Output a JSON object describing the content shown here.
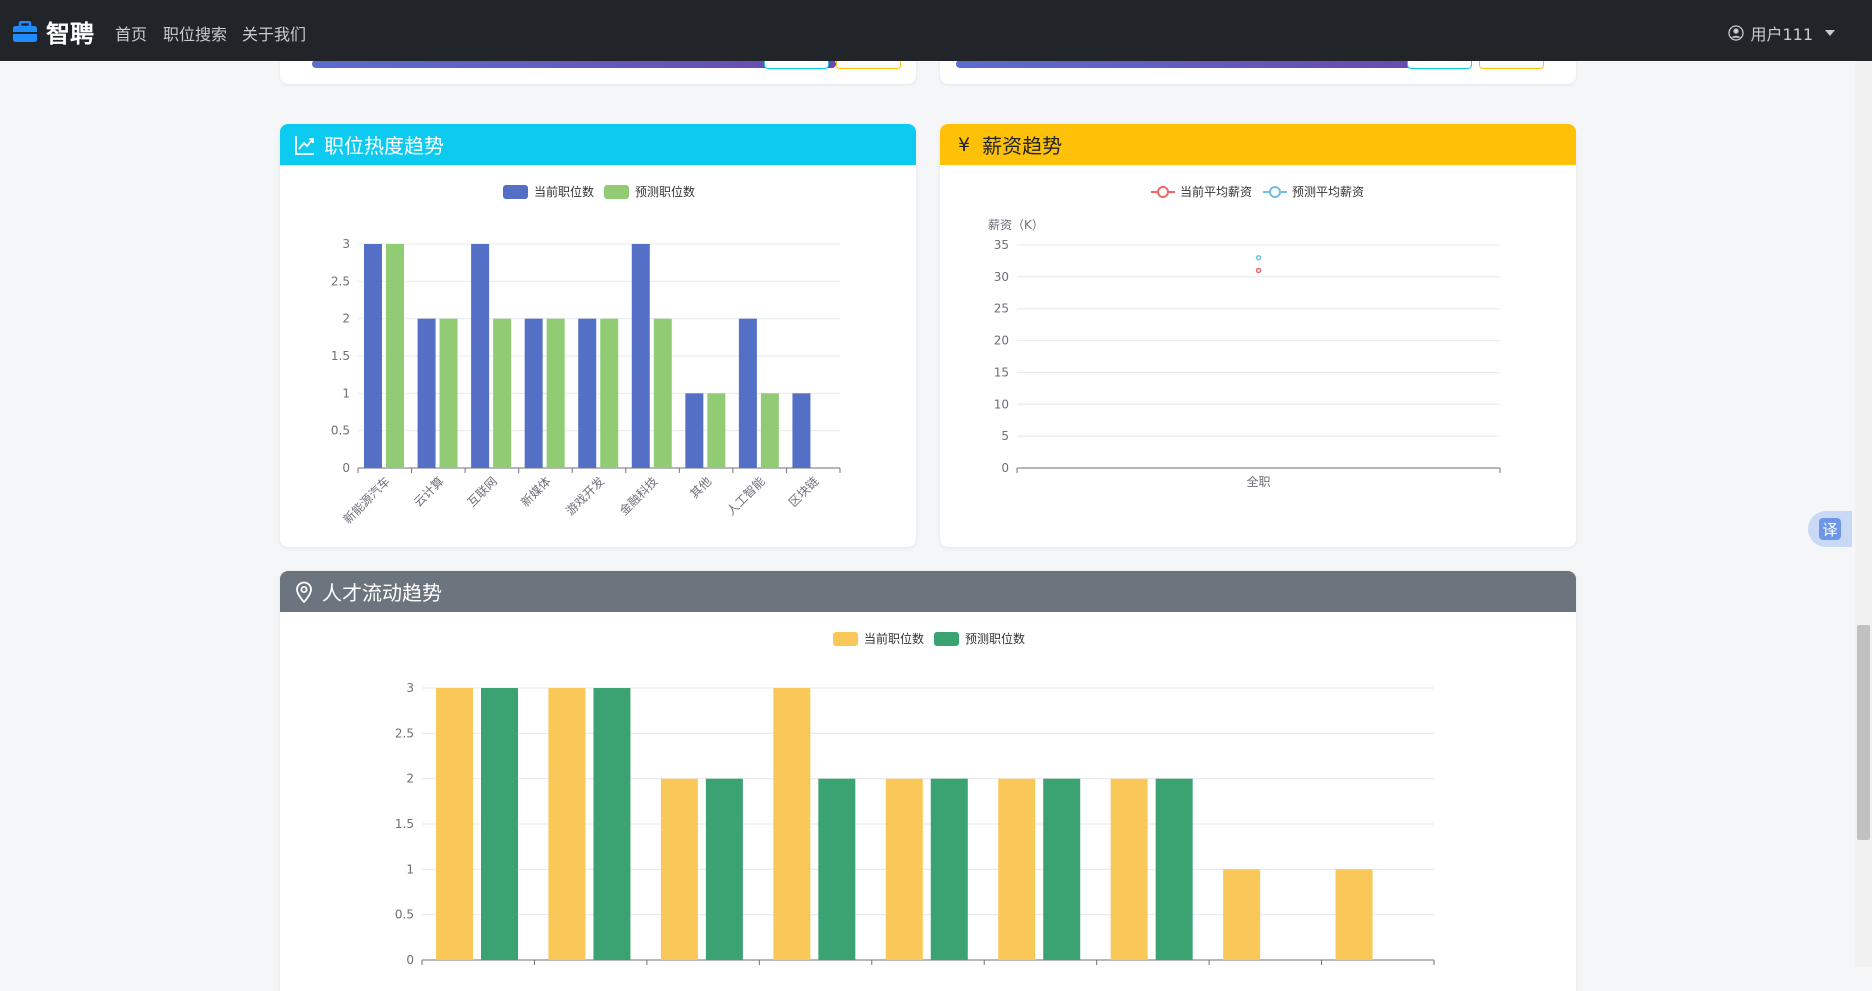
{
  "navbar": {
    "brand": "智聘",
    "links": [
      "首页",
      "职位搜索",
      "关于我们"
    ],
    "user": "用户111"
  },
  "translate_label": "译",
  "colors": {
    "navbar_bg": "#212529",
    "info": "#0dcaf0",
    "warning": "#ffc107",
    "secondary": "#6c757d",
    "blue_bar": "#5470c6",
    "green_bar": "#91cc75",
    "yellow_bar": "#fac858",
    "dark_green_bar": "#3ba272",
    "red_line": "#ee6666",
    "cyan_line": "#73c0de"
  },
  "cards": {
    "hot": {
      "title": "职位热度趋势"
    },
    "salary": {
      "title": "薪资趋势"
    },
    "flow": {
      "title": "人才流动趋势"
    }
  },
  "chart_data": [
    {
      "type": "bar",
      "title": "职位热度趋势",
      "legend": [
        "当前职位数",
        "预测职位数"
      ],
      "categories": [
        "新能源汽车",
        "云计算",
        "互联网",
        "新媒体",
        "游戏开发",
        "金融科技",
        "其他",
        "人工智能",
        "区块链"
      ],
      "series": [
        {
          "name": "当前职位数",
          "values": [
            3,
            2,
            3,
            2,
            2,
            3,
            1,
            2,
            1
          ]
        },
        {
          "name": "预测职位数",
          "values": [
            3,
            2,
            2,
            2,
            2,
            2,
            1,
            1,
            null
          ]
        }
      ],
      "ylim": [
        0,
        3
      ],
      "yticks": [
        "0",
        "0.5",
        "1",
        "1.5",
        "2",
        "2.5",
        "3"
      ]
    },
    {
      "type": "line",
      "title": "薪资趋势",
      "legend": [
        "当前平均薪资",
        "预测平均薪资"
      ],
      "ylabel": "薪资（K）",
      "categories": [
        "全职"
      ],
      "series": [
        {
          "name": "当前平均薪资",
          "values": [
            31
          ]
        },
        {
          "name": "预测平均薪资",
          "values": [
            33
          ]
        }
      ],
      "ylim": [
        0,
        35
      ],
      "yticks": [
        "0",
        "5",
        "10",
        "15",
        "20",
        "25",
        "30",
        "35"
      ]
    },
    {
      "type": "bar",
      "title": "人才流动趋势",
      "legend": [
        "当前职位数",
        "预测职位数"
      ],
      "categories": [
        "",
        "",
        "",
        "",
        "",
        "",
        "",
        "",
        ""
      ],
      "series": [
        {
          "name": "当前职位数",
          "values": [
            3,
            3,
            2,
            3,
            2,
            2,
            2,
            1,
            1
          ]
        },
        {
          "name": "预测职位数",
          "values": [
            3,
            3,
            2,
            2,
            2,
            2,
            2,
            null,
            null
          ]
        }
      ],
      "ylim": [
        0,
        3
      ],
      "yticks": [
        "0",
        "0.5",
        "1",
        "1.5",
        "2",
        "2.5",
        "3"
      ]
    }
  ]
}
